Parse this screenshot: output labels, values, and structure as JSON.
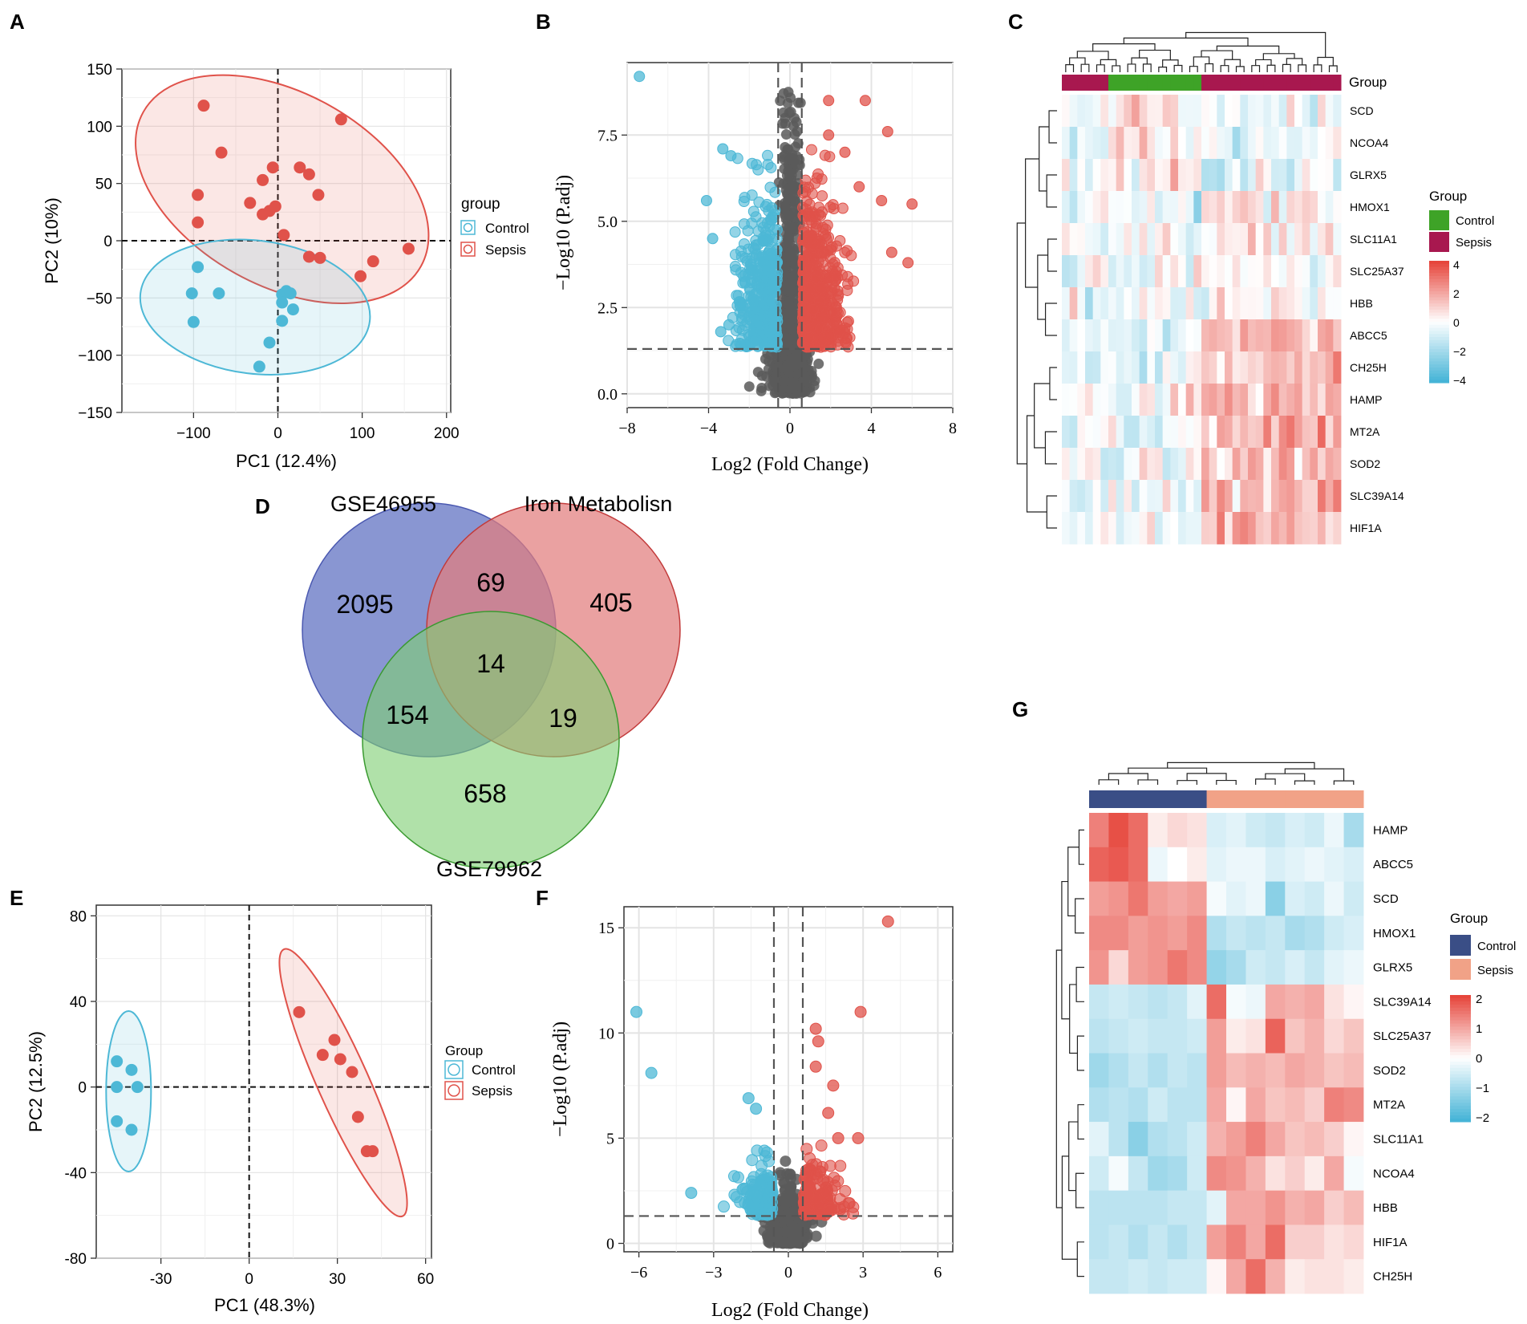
{
  "panels": {
    "a": "A",
    "b": "B",
    "c": "C",
    "d": "D",
    "e": "E",
    "f": "F",
    "g": "G"
  },
  "colors": {
    "control": "#4db8d6",
    "sepsis": "#e0524a",
    "grey": "#5a5a5a",
    "venn_blue": "#6f7fc8",
    "venn_red": "#e27d7d",
    "venn_green": "#7fcf74",
    "g_control": "#3a4e86",
    "g_sepsis": "#f1a287",
    "c_control": "#3ea327",
    "c_sepsis": "#a8184f"
  },
  "chart_data": [
    {
      "id": "A",
      "type": "scatter",
      "xlabel": "PC1 (12.4%)",
      "ylabel": "PC2 (10%)",
      "xlim": [
        -185,
        205
      ],
      "ylim": [
        -150,
        150
      ],
      "xticks": [
        -100,
        0,
        100,
        200
      ],
      "xtick_labels": [
        "−100",
        "0",
        "100",
        "200"
      ],
      "yticks": [
        150,
        100,
        50,
        0,
        -50,
        -100,
        -150
      ],
      "ytick_labels": [
        "150",
        "100",
        "50",
        "0",
        "−50",
        "−100",
        "−150"
      ],
      "legend": {
        "title": "group",
        "entries": [
          "Control",
          "Sepsis"
        ]
      },
      "series": [
        {
          "name": "Control",
          "points": [
            [
              -95,
              -23
            ],
            [
              -102,
              -46
            ],
            [
              -70,
              -46
            ],
            [
              -100,
              -71
            ],
            [
              -22,
              -110
            ],
            [
              -10,
              -89
            ],
            [
              5,
              -47
            ],
            [
              10,
              -44
            ],
            [
              15,
              -46
            ],
            [
              5,
              -54
            ],
            [
              18,
              -60
            ],
            [
              5,
              -70
            ]
          ]
        },
        {
          "name": "Sepsis",
          "points": [
            [
              -88,
              118
            ],
            [
              -67,
              77
            ],
            [
              -95,
              40
            ],
            [
              -95,
              16
            ],
            [
              -18,
              53
            ],
            [
              -6,
              64
            ],
            [
              -33,
              33
            ],
            [
              -18,
              23
            ],
            [
              -10,
              26
            ],
            [
              -3,
              30
            ],
            [
              26,
              64
            ],
            [
              37,
              58
            ],
            [
              48,
              40
            ],
            [
              75,
              106
            ],
            [
              7,
              5
            ],
            [
              37,
              -14
            ],
            [
              50,
              -15
            ],
            [
              98,
              -31
            ],
            [
              113,
              -18
            ],
            [
              155,
              -7
            ]
          ]
        }
      ]
    },
    {
      "id": "B",
      "type": "scatter",
      "xlabel": "Log2 (Fold Change)",
      "ylabel": "−Log10 (P.adj)",
      "xlim": [
        -8,
        8
      ],
      "ylim": [
        -0.4,
        9.6
      ],
      "xticks": [
        -8,
        -4,
        0,
        4,
        8
      ],
      "xtick_labels": [
        "−8",
        "−4",
        "0",
        "4",
        "8"
      ],
      "yticks": [
        0,
        2.5,
        5,
        7.5
      ],
      "ytick_labels": [
        "0.0",
        "2.5",
        "5.0",
        "7.5"
      ],
      "thresholds": {
        "x": [
          -0.58,
          0.58
        ],
        "y": 1.3
      }
    },
    {
      "id": "C",
      "type": "heatmap",
      "genes": [
        "SCD",
        "NCOA4",
        "GLRX5",
        "HMOX1",
        "SLC11A1",
        "SLC25A37",
        "HBB",
        "ABCC5",
        "CH25H",
        "HAMP",
        "MT2A",
        "SOD2",
        "SLC39A14",
        "HIF1A"
      ],
      "annotation_label": "Group",
      "groups": [
        "Sepsis",
        "Sepsis",
        "Sepsis",
        "Sepsis",
        "Sepsis",
        "Sepsis",
        "Control",
        "Control",
        "Control",
        "Control",
        "Control",
        "Control",
        "Control",
        "Control",
        "Control",
        "Control",
        "Control",
        "Control",
        "Sepsis",
        "Sepsis",
        "Sepsis",
        "Sepsis",
        "Sepsis",
        "Sepsis",
        "Sepsis",
        "Sepsis",
        "Sepsis",
        "Sepsis",
        "Sepsis",
        "Sepsis",
        "Sepsis",
        "Sepsis",
        "Sepsis",
        "Sepsis",
        "Sepsis",
        "Sepsis"
      ],
      "legend": {
        "title": "Group",
        "entries": [
          "Control",
          "Sepsis"
        ],
        "scale": [
          "4",
          "2",
          "0",
          "−2",
          "−4"
        ]
      }
    },
    {
      "id": "D",
      "type": "venn",
      "sets": [
        "GSE46955",
        "Iron Metabolisn",
        "GSE79962"
      ],
      "regions": {
        "only_a": "2095",
        "only_b": "405",
        "only_c": "658",
        "ab": "69",
        "ac": "154",
        "bc": "19",
        "abc": "14"
      }
    },
    {
      "id": "E",
      "type": "scatter",
      "xlabel": "PC1 (48.3%)",
      "ylabel": "PC2 (12.5%)",
      "xlim": [
        -52,
        62
      ],
      "ylim": [
        -80,
        85
      ],
      "xticks": [
        -30,
        0,
        30,
        60
      ],
      "xtick_labels": [
        "-30",
        "0",
        "30",
        "60"
      ],
      "yticks": [
        80,
        40,
        0,
        -40,
        -80
      ],
      "ytick_labels": [
        "80",
        "40",
        "0",
        "-40",
        "-80"
      ],
      "legend": {
        "title": "Group",
        "entries": [
          "Control",
          "Sepsis"
        ]
      },
      "series": [
        {
          "name": "Control",
          "points": [
            [
              -45,
              12
            ],
            [
              -40,
              8
            ],
            [
              -45,
              0
            ],
            [
              -38,
              0
            ],
            [
              -45,
              -16
            ],
            [
              -40,
              -20
            ]
          ]
        },
        {
          "name": "Sepsis",
          "points": [
            [
              17,
              35
            ],
            [
              29,
              22
            ],
            [
              25,
              15
            ],
            [
              31,
              13
            ],
            [
              35,
              7
            ],
            [
              37,
              -14
            ],
            [
              40,
              -30
            ],
            [
              42,
              -30
            ]
          ]
        }
      ]
    },
    {
      "id": "F",
      "type": "scatter",
      "xlabel": "Log2 (Fold Change)",
      "ylabel": "−Log10 (P.adj)",
      "xlim": [
        -6.6,
        6.6
      ],
      "ylim": [
        -0.4,
        16
      ],
      "xticks": [
        -6,
        -3,
        0,
        3,
        6
      ],
      "xtick_labels": [
        "−6",
        "−3",
        "0",
        "3",
        "6"
      ],
      "yticks": [
        0,
        5,
        10,
        15
      ],
      "ytick_labels": [
        "0",
        "5",
        "10",
        "15"
      ],
      "thresholds": {
        "x": [
          -0.58,
          0.58
        ],
        "y": 1.3
      },
      "series": [
        {
          "name": "Control",
          "points": [
            [
              -6.1,
              11
            ],
            [
              -5.5,
              8.1
            ],
            [
              -3.9,
              2.4
            ],
            [
              -1.6,
              6.9
            ],
            [
              -1.3,
              6.4
            ]
          ]
        },
        {
          "name": "Sepsis",
          "points": [
            [
              4,
              15.3
            ],
            [
              2.9,
              11
            ],
            [
              1.1,
              10.2
            ],
            [
              1.2,
              9.6
            ],
            [
              1.1,
              8.4
            ],
            [
              1.8,
              7.5
            ],
            [
              1.6,
              6.2
            ],
            [
              2.8,
              5
            ],
            [
              2,
              5
            ]
          ]
        }
      ]
    },
    {
      "id": "G",
      "type": "heatmap",
      "genes": [
        "HAMP",
        "ABCC5",
        "SCD",
        "HMOX1",
        "GLRX5",
        "SLC39A14",
        "SLC25A37",
        "SOD2",
        "MT2A",
        "SLC11A1",
        "NCOA4",
        "HBB",
        "HIF1A",
        "CH25H"
      ],
      "groups": [
        "Control",
        "Control",
        "Control",
        "Control",
        "Control",
        "Control",
        "Sepsis",
        "Sepsis",
        "Sepsis",
        "Sepsis",
        "Sepsis",
        "Sepsis",
        "Sepsis",
        "Sepsis"
      ],
      "legend": {
        "title": "Group",
        "entries": [
          "Control",
          "Sepsis"
        ],
        "scale": [
          "2",
          "1",
          "0",
          "−1",
          "−2"
        ]
      },
      "values": [
        [
          1.3,
          1.8,
          1.5,
          0.2,
          0.4,
          0.3,
          -0.4,
          -0.3,
          -0.5,
          -0.6,
          -0.4,
          -0.5,
          -0.2,
          -0.9
        ],
        [
          1.6,
          1.7,
          1.5,
          -0.2,
          0,
          0.2,
          -0.3,
          -0.2,
          -0.2,
          -0.4,
          -0.3,
          -0.2,
          -0.3,
          -0.4
        ],
        [
          1.0,
          1.1,
          1.4,
          1.0,
          0.9,
          1.0,
          -0.1,
          -0.3,
          -0.2,
          -1.2,
          -0.4,
          -0.5,
          -0.2,
          -0.5
        ],
        [
          1.2,
          1.2,
          1.0,
          1.1,
          1.0,
          1.2,
          -0.8,
          -0.6,
          -0.7,
          -0.6,
          -0.9,
          -0.8,
          -0.5,
          -0.4
        ],
        [
          1.1,
          0.4,
          1.0,
          1.1,
          1.4,
          1.2,
          -1.1,
          -0.9,
          -0.5,
          -0.6,
          -0.4,
          -0.6,
          -0.3,
          -0.2
        ],
        [
          -0.6,
          -0.5,
          -0.6,
          -0.7,
          -0.6,
          -0.3,
          1.5,
          -0.1,
          -0.2,
          0.9,
          0.8,
          0.9,
          0.3,
          0.1
        ],
        [
          -0.7,
          -0.6,
          -0.5,
          -0.6,
          -0.6,
          -0.5,
          1.0,
          0.2,
          0.3,
          1.6,
          0.6,
          0.8,
          0.4,
          0.6
        ],
        [
          -1.0,
          -0.8,
          -0.6,
          -0.8,
          -0.6,
          -0.7,
          1.0,
          0.7,
          0.8,
          0.7,
          0.9,
          0.8,
          0.6,
          0.7
        ],
        [
          -0.8,
          -0.7,
          -0.8,
          -0.5,
          -0.7,
          -0.7,
          0.9,
          0.1,
          0.9,
          0.6,
          0.7,
          0.5,
          1.3,
          1.2
        ],
        [
          -0.3,
          -0.7,
          -1.2,
          -0.8,
          -0.7,
          -0.5,
          0.8,
          1.0,
          1.3,
          0.9,
          0.6,
          0.7,
          0.5,
          0.1
        ],
        [
          -0.5,
          -0.1,
          -0.6,
          -1.0,
          -0.9,
          -0.5,
          1.2,
          1.1,
          0.8,
          0.3,
          0.5,
          0.2,
          0.9,
          -0.1
        ],
        [
          -0.7,
          -0.7,
          -0.7,
          -0.7,
          -0.6,
          -0.6,
          -0.3,
          0.9,
          0.9,
          1.1,
          0.8,
          0.9,
          0.5,
          0.7
        ],
        [
          -0.7,
          -0.6,
          -0.8,
          -0.6,
          -0.8,
          -0.6,
          1.0,
          1.3,
          0.9,
          1.5,
          0.5,
          0.5,
          0.3,
          0.4
        ],
        [
          -0.6,
          -0.6,
          -0.5,
          -0.6,
          -0.5,
          -0.5,
          0.1,
          0.9,
          1.5,
          0.8,
          0.2,
          0.3,
          0.3,
          0.2
        ]
      ]
    }
  ]
}
